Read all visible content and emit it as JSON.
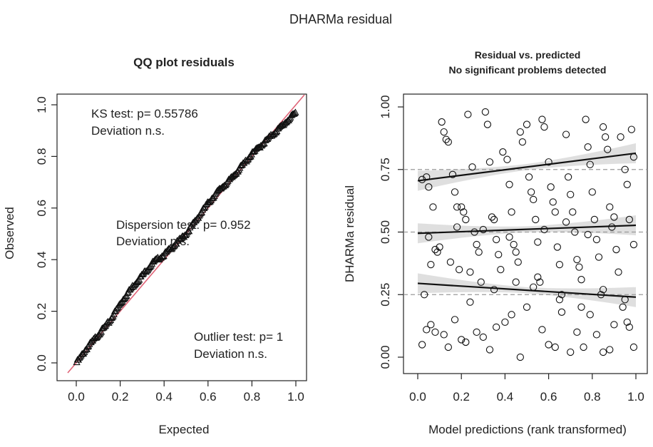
{
  "suptitle": "DHARMa residual",
  "chart_data": [
    {
      "type": "scatter",
      "title": "QQ plot residuals",
      "xlabel": "Expected",
      "ylabel": "Observed",
      "xlim": [
        0,
        1
      ],
      "ylim": [
        0,
        1
      ],
      "xticks": [
        "0.0",
        "0.2",
        "0.4",
        "0.6",
        "0.8",
        "1.0"
      ],
      "yticks": [
        "0.0",
        "0.2",
        "0.4",
        "0.6",
        "0.8",
        "1.0"
      ],
      "reference_line": {
        "from": [
          0,
          0
        ],
        "to": [
          1,
          1
        ],
        "color": "#e06478"
      },
      "point_marker": "triangle",
      "point_color": "#111111",
      "qq_curve": [
        [
          0.0,
          0.0
        ],
        [
          0.05,
          0.06
        ],
        [
          0.1,
          0.11
        ],
        [
          0.15,
          0.16
        ],
        [
          0.2,
          0.23
        ],
        [
          0.25,
          0.29
        ],
        [
          0.3,
          0.34
        ],
        [
          0.35,
          0.39
        ],
        [
          0.4,
          0.42
        ],
        [
          0.45,
          0.46
        ],
        [
          0.5,
          0.5
        ],
        [
          0.55,
          0.56
        ],
        [
          0.6,
          0.62
        ],
        [
          0.65,
          0.67
        ],
        [
          0.7,
          0.71
        ],
        [
          0.75,
          0.76
        ],
        [
          0.8,
          0.81
        ],
        [
          0.85,
          0.85
        ],
        [
          0.9,
          0.89
        ],
        [
          0.95,
          0.93
        ],
        [
          1.0,
          0.97
        ]
      ],
      "annotations": {
        "ks_line1": "KS test: p= 0.55786",
        "ks_line2": "Deviation  n.s.",
        "disp_line1": "Dispersion test: p= 0.952",
        "disp_line2": "Deviation  n.s.",
        "outlier_line1": "Outlier test: p= 1",
        "outlier_line2": "Deviation  n.s."
      }
    },
    {
      "type": "scatter",
      "title": "Residual vs. predicted",
      "subtitle": "No significant problems detected",
      "xlabel": "Model predictions (rank transformed)",
      "ylabel": "DHARMa residual",
      "xlim": [
        0,
        1
      ],
      "ylim": [
        0,
        1
      ],
      "xticks": [
        "0.0",
        "0.2",
        "0.4",
        "0.6",
        "0.8",
        "1.0"
      ],
      "yticks": [
        "0.00",
        "0.25",
        "0.50",
        "0.75",
        "1.00"
      ],
      "reference_lines": [
        0.25,
        0.5,
        0.75
      ],
      "quantile_fits": [
        {
          "quantile": 0.75,
          "from": [
            0.0,
            0.705
          ],
          "to": [
            1.0,
            0.815
          ]
        },
        {
          "quantile": 0.5,
          "from": [
            0.0,
            0.495
          ],
          "to": [
            1.0,
            0.527
          ]
        },
        {
          "quantile": 0.25,
          "from": [
            0.0,
            0.295
          ],
          "to": [
            1.0,
            0.24
          ]
        }
      ],
      "point_marker": "open-circle",
      "points": [
        [
          0.02,
          0.71
        ],
        [
          0.03,
          0.25
        ],
        [
          0.04,
          0.72
        ],
        [
          0.05,
          0.68
        ],
        [
          0.07,
          0.6
        ],
        [
          0.08,
          0.43
        ],
        [
          0.09,
          0.42
        ],
        [
          0.1,
          0.44
        ],
        [
          0.11,
          0.94
        ],
        [
          0.12,
          0.9
        ],
        [
          0.13,
          0.87
        ],
        [
          0.14,
          0.86
        ],
        [
          0.16,
          0.73
        ],
        [
          0.17,
          0.66
        ],
        [
          0.18,
          0.6
        ],
        [
          0.19,
          0.35
        ],
        [
          0.2,
          0.6
        ],
        [
          0.21,
          0.58
        ],
        [
          0.22,
          0.55
        ],
        [
          0.23,
          0.97
        ],
        [
          0.25,
          0.76
        ],
        [
          0.26,
          0.5
        ],
        [
          0.27,
          0.45
        ],
        [
          0.28,
          0.42
        ],
        [
          0.29,
          0.3
        ],
        [
          0.31,
          0.98
        ],
        [
          0.32,
          0.93
        ],
        [
          0.33,
          0.78
        ],
        [
          0.34,
          0.56
        ],
        [
          0.35,
          0.55
        ],
        [
          0.36,
          0.47
        ],
        [
          0.37,
          0.41
        ],
        [
          0.38,
          0.35
        ],
        [
          0.39,
          0.82
        ],
        [
          0.41,
          0.79
        ],
        [
          0.42,
          0.69
        ],
        [
          0.43,
          0.58
        ],
        [
          0.44,
          0.45
        ],
        [
          0.45,
          0.42
        ],
        [
          0.46,
          0.38
        ],
        [
          0.47,
          0.9
        ],
        [
          0.48,
          0.86
        ],
        [
          0.5,
          0.93
        ],
        [
          0.51,
          0.72
        ],
        [
          0.52,
          0.66
        ],
        [
          0.53,
          0.63
        ],
        [
          0.54,
          0.55
        ],
        [
          0.55,
          0.46
        ],
        [
          0.56,
          0.3
        ],
        [
          0.57,
          0.95
        ],
        [
          0.58,
          0.92
        ],
        [
          0.6,
          0.78
        ],
        [
          0.61,
          0.68
        ],
        [
          0.62,
          0.62
        ],
        [
          0.63,
          0.58
        ],
        [
          0.64,
          0.44
        ],
        [
          0.65,
          0.37
        ],
        [
          0.66,
          0.25
        ],
        [
          0.68,
          0.89
        ],
        [
          0.69,
          0.72
        ],
        [
          0.7,
          0.65
        ],
        [
          0.71,
          0.58
        ],
        [
          0.72,
          0.5
        ],
        [
          0.73,
          0.39
        ],
        [
          0.74,
          0.36
        ],
        [
          0.75,
          0.31
        ],
        [
          0.77,
          0.95
        ],
        [
          0.78,
          0.84
        ],
        [
          0.79,
          0.77
        ],
        [
          0.8,
          0.66
        ],
        [
          0.81,
          0.55
        ],
        [
          0.82,
          0.47
        ],
        [
          0.83,
          0.4
        ],
        [
          0.84,
          0.25
        ],
        [
          0.85,
          0.92
        ],
        [
          0.86,
          0.88
        ],
        [
          0.87,
          0.83
        ],
        [
          0.88,
          0.6
        ],
        [
          0.9,
          0.56
        ],
        [
          0.91,
          0.43
        ],
        [
          0.92,
          0.34
        ],
        [
          0.93,
          0.88
        ],
        [
          0.95,
          0.75
        ],
        [
          0.96,
          0.69
        ],
        [
          0.97,
          0.55
        ],
        [
          0.98,
          0.91
        ],
        [
          0.99,
          0.8
        ],
        [
          0.97,
          0.12
        ],
        [
          0.02,
          0.05
        ],
        [
          0.04,
          0.11
        ],
        [
          0.06,
          0.13
        ],
        [
          0.08,
          0.1
        ],
        [
          0.12,
          0.09
        ],
        [
          0.14,
          0.04
        ],
        [
          0.17,
          0.15
        ],
        [
          0.2,
          0.07
        ],
        [
          0.22,
          0.06
        ],
        [
          0.24,
          0.22
        ],
        [
          0.27,
          0.1
        ],
        [
          0.3,
          0.08
        ],
        [
          0.33,
          0.03
        ],
        [
          0.36,
          0.12
        ],
        [
          0.4,
          0.14
        ],
        [
          0.43,
          0.17
        ],
        [
          0.47,
          0.0
        ],
        [
          0.5,
          0.2
        ],
        [
          0.53,
          0.28
        ],
        [
          0.57,
          0.11
        ],
        [
          0.6,
          0.05
        ],
        [
          0.63,
          0.04
        ],
        [
          0.66,
          0.18
        ],
        [
          0.7,
          0.02
        ],
        [
          0.73,
          0.1
        ],
        [
          0.76,
          0.04
        ],
        [
          0.79,
          0.17
        ],
        [
          0.82,
          0.09
        ],
        [
          0.85,
          0.02
        ],
        [
          0.88,
          0.03
        ],
        [
          0.9,
          0.13
        ],
        [
          0.94,
          0.2
        ],
        [
          0.96,
          0.14
        ],
        [
          0.99,
          0.04
        ],
        [
          0.06,
          0.37
        ],
        [
          0.15,
          0.38
        ],
        [
          0.24,
          0.34
        ],
        [
          0.35,
          0.27
        ],
        [
          0.45,
          0.3
        ],
        [
          0.55,
          0.32
        ],
        [
          0.65,
          0.23
        ],
        [
          0.75,
          0.2
        ],
        [
          0.85,
          0.27
        ],
        [
          0.95,
          0.23
        ],
        [
          0.05,
          0.48
        ],
        [
          0.18,
          0.52
        ],
        [
          0.3,
          0.51
        ],
        [
          0.42,
          0.48
        ],
        [
          0.58,
          0.51
        ],
        [
          0.68,
          0.54
        ],
        [
          0.78,
          0.49
        ],
        [
          0.89,
          0.52
        ],
        [
          0.99,
          0.45
        ]
      ]
    }
  ]
}
